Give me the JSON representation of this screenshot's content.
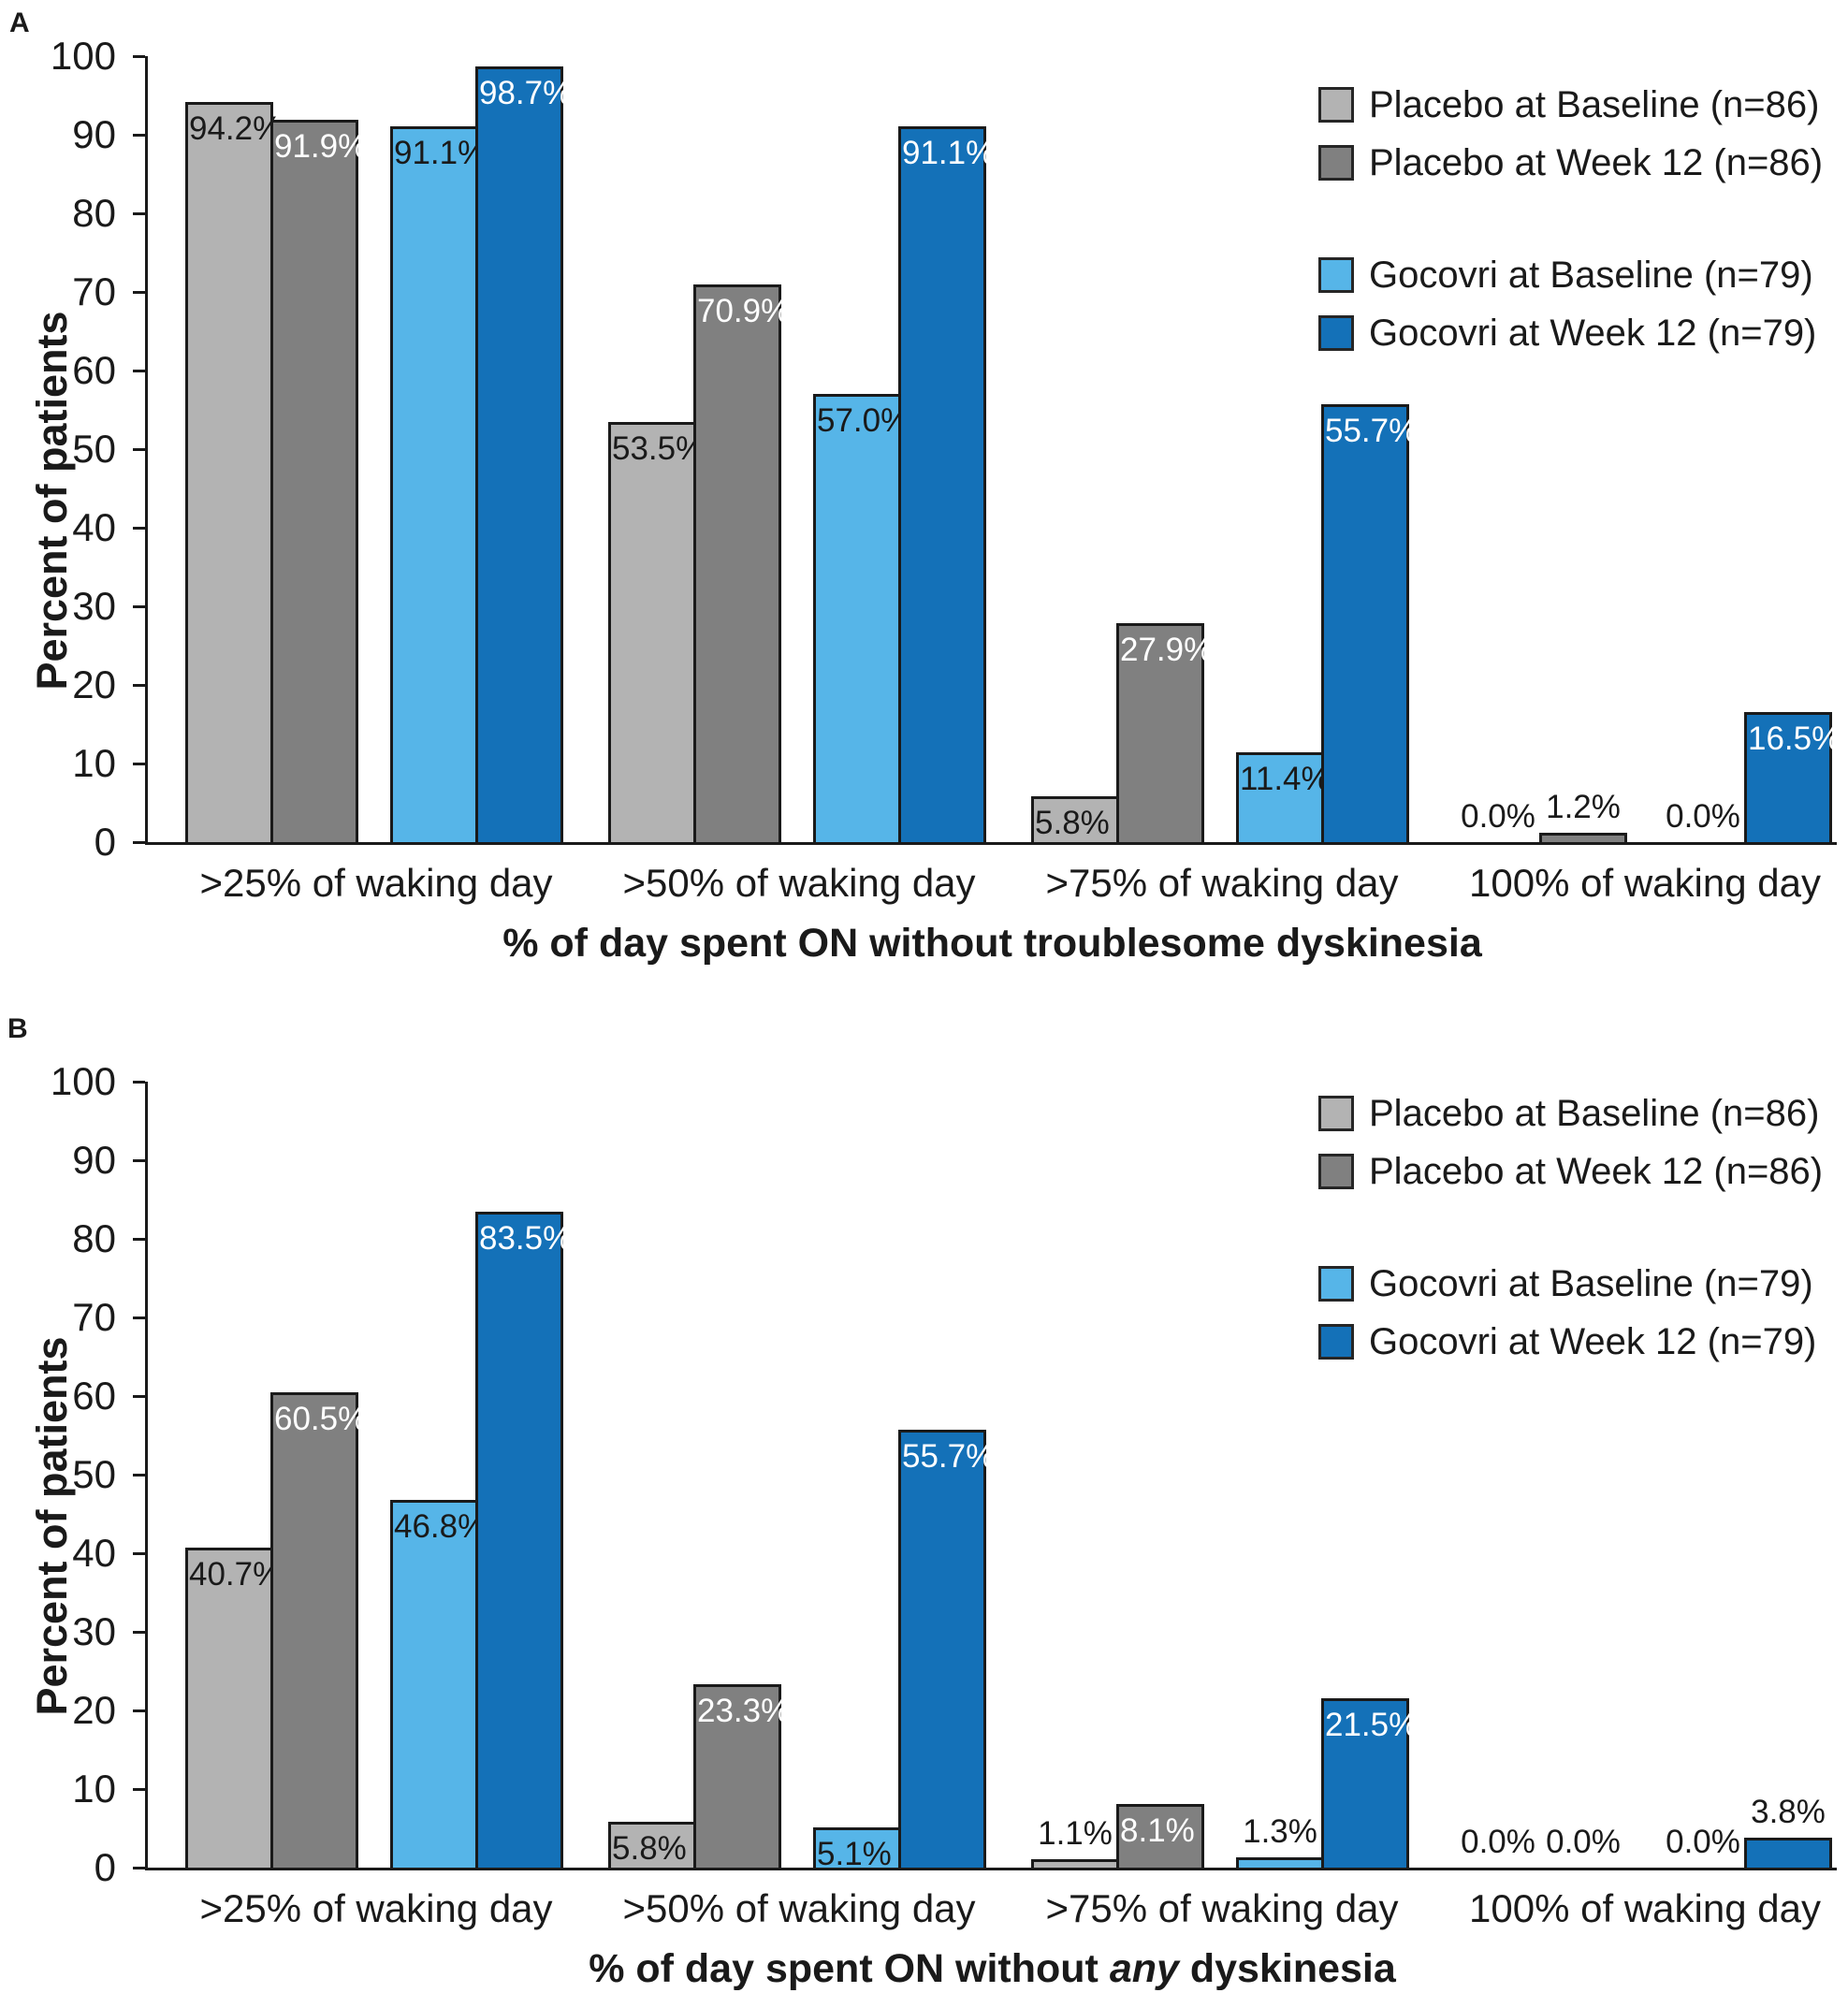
{
  "colors": {
    "background": "#ffffff",
    "axis": "#1a1a1a",
    "bar_border": "#1a1a1a",
    "label_on_light_bars": "#1a1a1a",
    "label_on_dark_bars": "#ffffff"
  },
  "chart_data": [
    {
      "type": "bar",
      "panel_label": "A",
      "title": "",
      "ylabel": "Percent of patients",
      "xlabel": "% of day spent ON without troublesome dyskinesia",
      "xlabel_parts": {
        "prefix": "% of day spent ON without troublesome dyskinesia",
        "italic": "",
        "suffix": ""
      },
      "categories": [
        ">25% of waking day",
        ">50% of waking day",
        ">75% of waking day",
        "100% of waking day"
      ],
      "series": [
        {
          "name": "Placebo at Baseline (n=86)",
          "color": "#b3b3b3",
          "label_color": "#1a1a1a",
          "values": [
            94.2,
            53.5,
            5.8,
            0.0
          ]
        },
        {
          "name": "Placebo at Week 12 (n=86)",
          "color": "#808080",
          "label_color": "#ffffff",
          "values": [
            91.9,
            70.9,
            27.9,
            1.2
          ]
        },
        {
          "name": "Gocovri at Baseline (n=79)",
          "color": "#56b5e8",
          "label_color": "#1a1a1a",
          "values": [
            91.1,
            57.0,
            11.4,
            0.0
          ]
        },
        {
          "name": "Gocovri at Week 12 (n=79)",
          "color": "#1471b8",
          "label_color": "#ffffff",
          "values": [
            98.7,
            91.1,
            55.7,
            16.5
          ]
        }
      ],
      "ylim": [
        0,
        100
      ],
      "yticks": [
        0,
        10,
        20,
        30,
        40,
        50,
        60,
        70,
        80,
        90,
        100
      ],
      "grid": false,
      "legend_position": "top-right",
      "bar_value_format": "{value}%"
    },
    {
      "type": "bar",
      "panel_label": "B",
      "title": "",
      "ylabel": "Percent of patients",
      "xlabel": "% of day spent ON without any dyskinesia",
      "xlabel_parts": {
        "prefix": "% of day spent ON without ",
        "italic": "any",
        "suffix": " dyskinesia"
      },
      "categories": [
        ">25% of waking day",
        ">50% of waking day",
        ">75% of waking day",
        "100% of waking day"
      ],
      "series": [
        {
          "name": "Placebo at Baseline (n=86)",
          "color": "#b3b3b3",
          "label_color": "#1a1a1a",
          "values": [
            40.7,
            5.8,
            1.1,
            0.0
          ]
        },
        {
          "name": "Placebo at Week 12 (n=86)",
          "color": "#808080",
          "label_color": "#ffffff",
          "values": [
            60.5,
            23.3,
            8.1,
            0.0
          ]
        },
        {
          "name": "Gocovri at Baseline (n=79)",
          "color": "#56b5e8",
          "label_color": "#1a1a1a",
          "values": [
            46.8,
            5.1,
            1.3,
            0.0
          ]
        },
        {
          "name": "Gocovri at Week 12 (n=79)",
          "color": "#1471b8",
          "label_color": "#ffffff",
          "values": [
            83.5,
            55.7,
            21.5,
            3.8
          ]
        }
      ],
      "ylim": [
        0,
        100
      ],
      "yticks": [
        0,
        10,
        20,
        30,
        40,
        50,
        60,
        70,
        80,
        90,
        100
      ],
      "grid": false,
      "legend_position": "top-right",
      "bar_value_format": "{value}%"
    }
  ]
}
